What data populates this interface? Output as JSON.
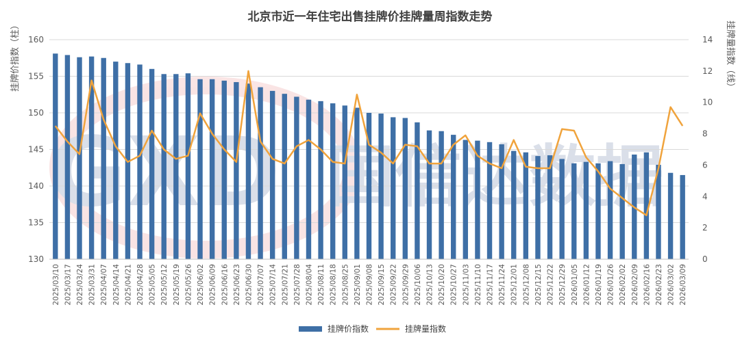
{
  "chart_data": {
    "type": "bar+line",
    "title": "北京市近一年住宅出售挂牌价挂牌量周指数走势",
    "ylabel_left": "挂牌价指数（柱）",
    "ylabel_right": "挂牌量指数（线）",
    "ylim_left": [
      130,
      160
    ],
    "ylim_right": [
      0,
      14
    ],
    "yticks_left": [
      "130",
      "135",
      "140",
      "145",
      "150",
      "155",
      "160"
    ],
    "yticks_right": [
      "0",
      "2",
      "4",
      "6",
      "8",
      "10",
      "12",
      "14"
    ],
    "grid": true,
    "legend_position": "bottom",
    "categories": [
      "2025/03/10",
      "2025/03/17",
      "2025/03/24",
      "2025/03/31",
      "2025/04/07",
      "2025/04/14",
      "2025/04/21",
      "2025/04/28",
      "2025/05/05",
      "2025/05/12",
      "2025/05/19",
      "2025/05/26",
      "2025/06/02",
      "2025/06/09",
      "2025/06/16",
      "2025/06/23",
      "2025/06/30",
      "2025/07/07",
      "2025/07/14",
      "2025/07/21",
      "2025/07/28",
      "2025/08/04",
      "2025/08/11",
      "2025/08/18",
      "2025/08/25",
      "2025/09/01",
      "2025/09/08",
      "2025/09/15",
      "2025/09/22",
      "2025/09/29",
      "2025/10/06",
      "2025/10/13",
      "2025/10/20",
      "2025/10/27",
      "2025/11/03",
      "2025/11/10",
      "2025/11/17",
      "2025/11/24",
      "2025/12/01",
      "2025/12/08",
      "2025/12/15",
      "2025/12/22",
      "2025/12/29",
      "2026/01/05",
      "2026/01/12",
      "2026/01/19",
      "2026/01/26",
      "2026/02/02",
      "2026/02/09",
      "2026/02/16",
      "2026/02/23",
      "2026/03/02",
      "2026/03/09"
    ],
    "series": [
      {
        "name": "挂牌价指数",
        "type": "bar",
        "axis": "left",
        "color": "#3e6fa6",
        "values": [
          158.1,
          157.9,
          157.6,
          157.7,
          157.5,
          157.0,
          156.8,
          156.6,
          156.0,
          155.3,
          155.3,
          155.4,
          154.6,
          154.6,
          154.4,
          154.2,
          154.0,
          153.5,
          153.0,
          152.6,
          152.2,
          151.8,
          151.6,
          151.3,
          151.0,
          150.7,
          150.0,
          149.9,
          149.4,
          149.3,
          148.7,
          147.6,
          147.5,
          147.0,
          146.3,
          146.2,
          146.0,
          145.7,
          144.8,
          144.6,
          144.1,
          144.2,
          143.7,
          143.1,
          143.3,
          143.1,
          143.4,
          143.0,
          144.3,
          144.6,
          142.9,
          141.8,
          141.5
        ]
      },
      {
        "name": "挂牌量指数",
        "type": "line",
        "axis": "right",
        "color": "#f0a33c",
        "values": [
          8.5,
          7.5,
          6.7,
          11.4,
          8.9,
          7.2,
          6.2,
          6.6,
          8.2,
          7.0,
          6.4,
          6.6,
          9.3,
          8.0,
          7.0,
          6.2,
          12.0,
          7.5,
          6.4,
          6.1,
          7.2,
          7.6,
          7.0,
          6.2,
          6.1,
          10.5,
          7.3,
          6.8,
          6.1,
          7.3,
          7.2,
          6.1,
          6.1,
          7.3,
          7.9,
          6.6,
          6.1,
          5.8,
          7.6,
          5.9,
          5.8,
          5.8,
          8.3,
          8.2,
          6.5,
          5.6,
          4.5,
          3.9,
          3.3,
          2.8,
          5.8,
          9.7,
          8.5
        ]
      }
    ]
  },
  "watermark": {
    "logo_text": "GXD",
    "brand_text": "国信达数据"
  }
}
